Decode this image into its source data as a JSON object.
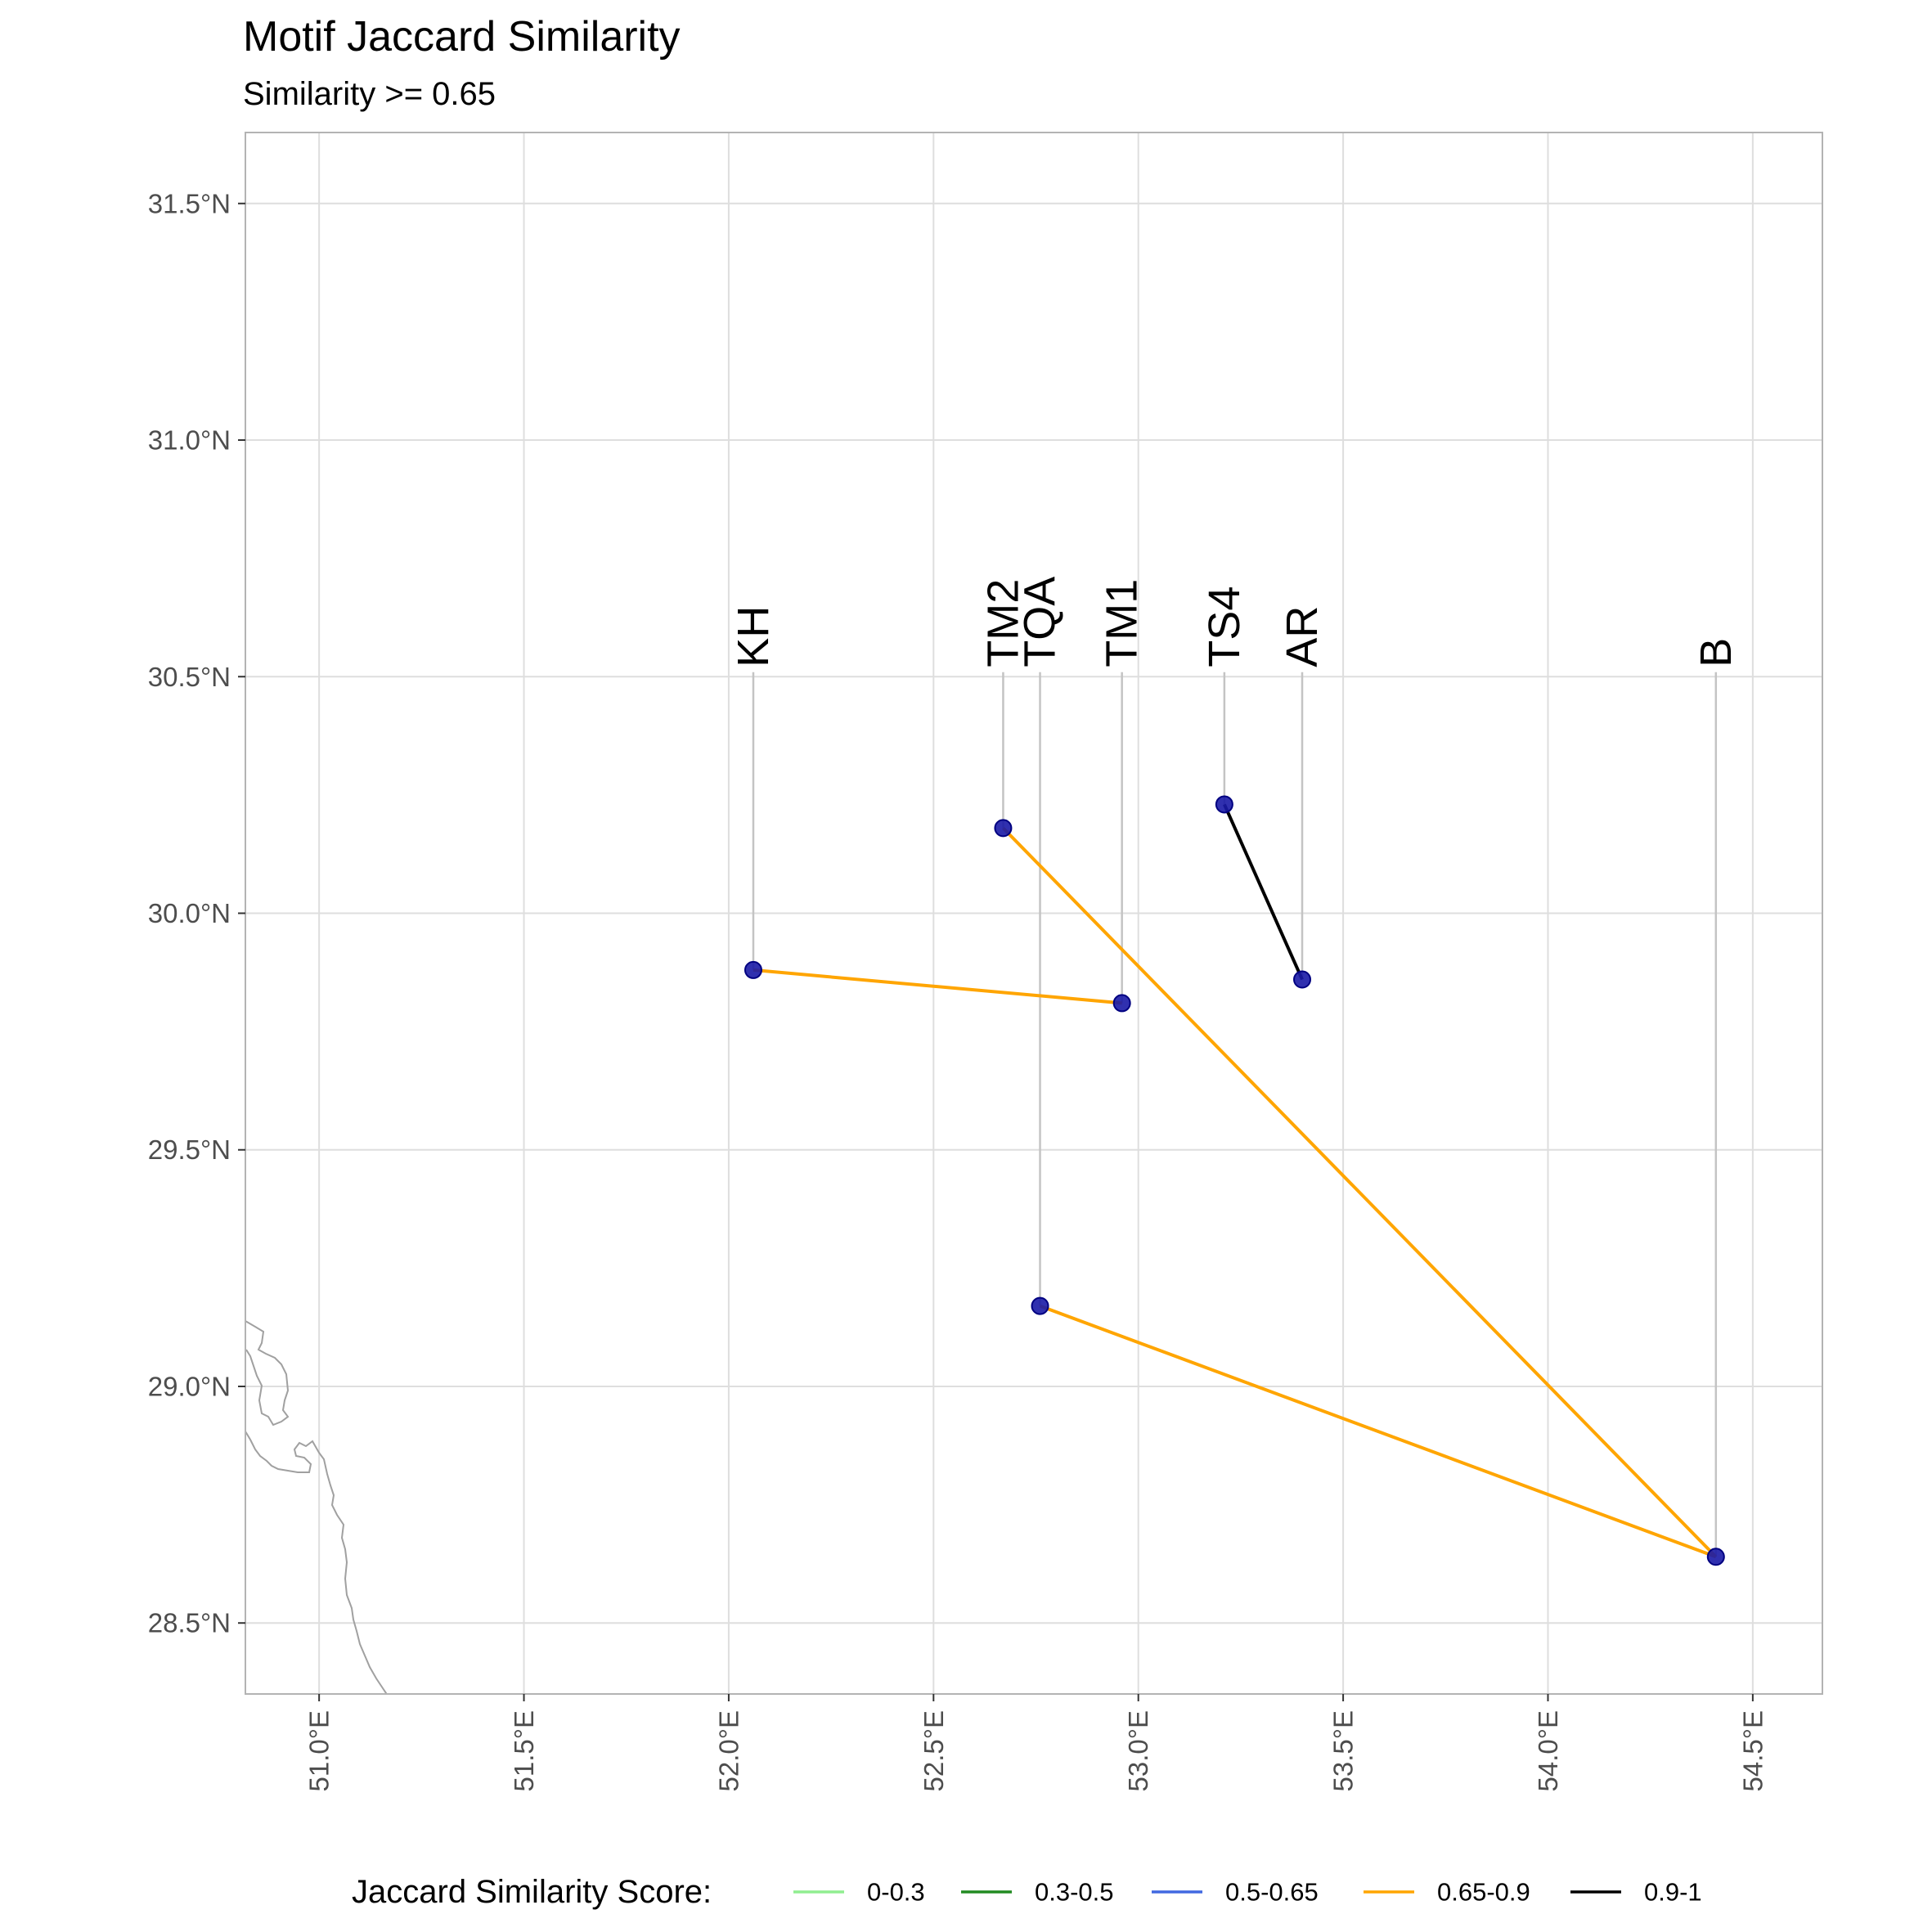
{
  "title": "Motif Jaccard Similarity",
  "subtitle": "Similarity >= 0.65",
  "chart_data": {
    "type": "map",
    "x_axis": {
      "range": [
        50.82,
        54.67
      ],
      "ticks": [
        51.0,
        51.5,
        52.0,
        52.5,
        53.0,
        53.5,
        54.0,
        54.5
      ],
      "tick_labels": [
        "51.0°E",
        "51.5°E",
        "52.0°E",
        "52.5°E",
        "53.0°E",
        "53.5°E",
        "54.0°E",
        "54.5°E"
      ]
    },
    "y_axis": {
      "range": [
        28.35,
        31.65
      ],
      "ticks": [
        28.5,
        29.0,
        29.5,
        30.0,
        30.5,
        31.0,
        31.5
      ],
      "tick_labels": [
        "28.5°N",
        "29.0°N",
        "29.5°N",
        "30.0°N",
        "30.5°N",
        "31.0°N",
        "31.5°N"
      ]
    },
    "grid": true,
    "label_lat": 30.52,
    "sites": [
      {
        "name": "KH",
        "lon": 52.06,
        "lat": 29.88
      },
      {
        "name": "TM2",
        "lon": 52.67,
        "lat": 30.18
      },
      {
        "name": "TQA",
        "lon": 52.76,
        "lat": 29.17
      },
      {
        "name": "TM1",
        "lon": 52.96,
        "lat": 29.81
      },
      {
        "name": "TS4",
        "lon": 53.21,
        "lat": 30.23
      },
      {
        "name": "AR",
        "lon": 53.4,
        "lat": 29.86
      },
      {
        "name": "B",
        "lon": 54.41,
        "lat": 28.64
      }
    ],
    "links": [
      {
        "from": "KH",
        "to": "TM1",
        "category": "0.65-0.9"
      },
      {
        "from": "TM2",
        "to": "B",
        "category": "0.65-0.9"
      },
      {
        "from": "TQA",
        "to": "B",
        "category": "0.65-0.9"
      },
      {
        "from": "TS4",
        "to": "AR",
        "category": "0.9-1"
      }
    ],
    "legend": {
      "title": "Jaccard Similarity Score:",
      "position": "bottom",
      "items": [
        {
          "label": "0-0.3",
          "color": "#90ee90"
        },
        {
          "label": "0.3-0.5",
          "color": "#228b22"
        },
        {
          "label": "0.5-0.65",
          "color": "#4169e1"
        },
        {
          "label": "0.65-0.9",
          "color": "#ffa500"
        },
        {
          "label": "0.9-1",
          "color": "#000000"
        }
      ]
    },
    "point_color": "#1a1aa6",
    "coastline_color": "#a0a0a0"
  }
}
